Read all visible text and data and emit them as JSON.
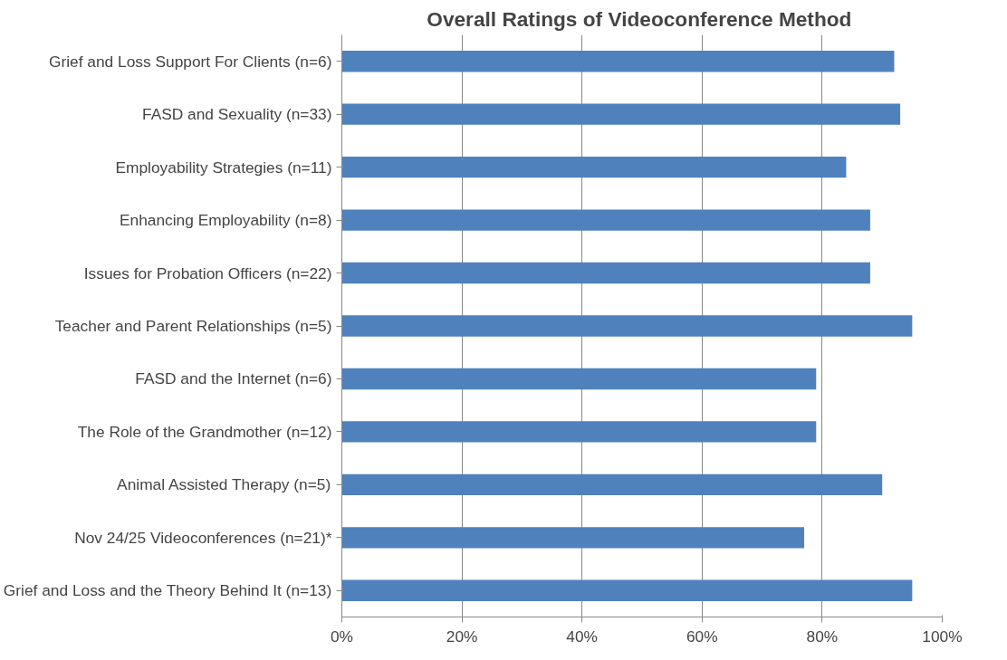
{
  "chart_data": {
    "type": "bar",
    "orientation": "horizontal",
    "title": "Overall Ratings of  Videoconference Method",
    "categories": [
      "Grief and Loss Support For Clients (n=6)",
      "FASD and Sexuality (n=33)",
      "Employability Strategies (n=11)",
      "Enhancing Employability (n=8)",
      "Issues for Probation Officers (n=22)",
      "Teacher and Parent Relationships (n=5)",
      "FASD and the Internet (n=6)",
      "The Role of the Grandmother (n=12)",
      "Animal Assisted Therapy (n=5)",
      "Nov 24/25 Videoconferences (n=21)*",
      "Grief and Loss and the Theory Behind It (n=13)"
    ],
    "values": [
      92,
      93,
      84,
      88,
      88,
      95,
      79,
      79,
      90,
      77,
      95
    ],
    "color": "#4f81bd",
    "xlim": [
      0,
      100
    ],
    "xticks": [
      {
        "value": 0,
        "label": "0%"
      },
      {
        "value": 20,
        "label": "20%"
      },
      {
        "value": 40,
        "label": "40%"
      },
      {
        "value": 60,
        "label": "60%"
      },
      {
        "value": 80,
        "label": "80%"
      },
      {
        "value": 100,
        "label": "100%"
      }
    ],
    "grid": "x"
  }
}
